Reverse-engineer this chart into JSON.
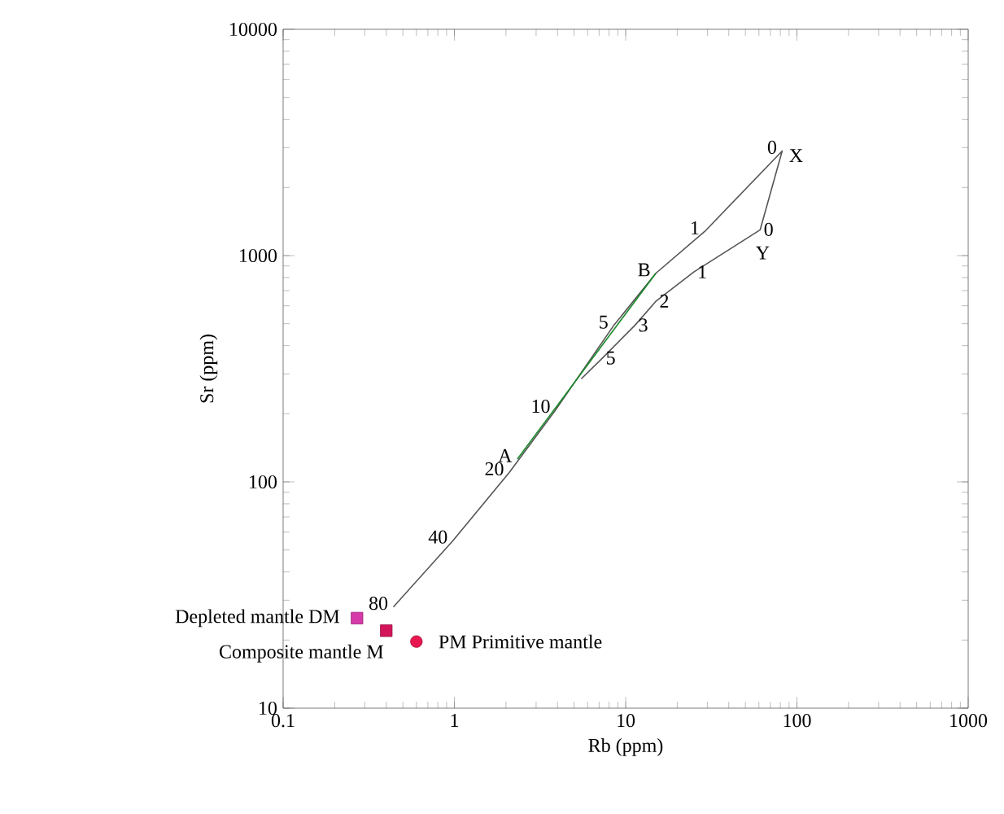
{
  "chart_data": {
    "type": "line",
    "xlabel": "Rb (ppm)",
    "ylabel": "Sr (ppm)",
    "log": "xy",
    "xlim": [
      0.1,
      1000
    ],
    "ylim": [
      10,
      10000
    ],
    "xticks": [
      0.1,
      1,
      10,
      100,
      1000
    ],
    "yticks": [
      10,
      100,
      1000,
      10000
    ],
    "grid": false,
    "legend": "bottom left",
    "series": [
      {
        "color": "#555555",
        "x": [
          0.44,
          0.98,
          2.09,
          3.9,
          8.5,
          15,
          29,
          82,
          61,
          25,
          15,
          11.3,
          7.3,
          5.5
        ],
        "values": [
          28,
          55,
          110,
          208,
          490,
          835,
          1280,
          2900,
          1300,
          846,
          628,
          491,
          352,
          285
        ]
      },
      {
        "color": "#1a8a2a",
        "x": [
          2.33,
          15
        ],
        "values": [
          126,
          835
        ]
      },
      {
        "name": "Depleted mantle  DM",
        "type": "scatter",
        "marker": "square",
        "color": "#d63aa8",
        "x": [
          0.27
        ],
        "values": [
          25
        ]
      },
      {
        "name": "Composite mantle  M",
        "type": "scatter",
        "marker": "square",
        "color": "#d4145a",
        "x": [
          0.4
        ],
        "values": [
          22
        ]
      },
      {
        "name": "PM  Primitive mantle",
        "type": "scatter",
        "marker": "circle",
        "color": "#e8174f",
        "x": [
          0.6
        ],
        "values": [
          19.7
        ]
      }
    ],
    "annotations": [
      {
        "text": "80",
        "x": 0.44,
        "y": 28
      },
      {
        "text": "40",
        "x": 0.98,
        "y": 55
      },
      {
        "text": "20",
        "x": 2.09,
        "y": 110
      },
      {
        "text": "A",
        "x": 2.33,
        "y": 126
      },
      {
        "text": "10",
        "x": 3.9,
        "y": 208
      },
      {
        "text": "5",
        "x": 8.5,
        "y": 490
      },
      {
        "text": "B",
        "x": 15,
        "y": 835
      },
      {
        "text": "1",
        "x": 29,
        "y": 1280
      },
      {
        "text": "0",
        "x": 82,
        "y": 2900
      },
      {
        "text": "X",
        "x": 82,
        "y": 2900
      },
      {
        "text": "0",
        "x": 61,
        "y": 1300
      },
      {
        "text": "Y",
        "x": 61,
        "y": 1300
      },
      {
        "text": "1",
        "x": 25,
        "y": 846
      },
      {
        "text": "2",
        "x": 15,
        "y": 628
      },
      {
        "text": "3",
        "x": 11.3,
        "y": 491
      },
      {
        "text": "5",
        "x": 7.3,
        "y": 352
      }
    ]
  }
}
